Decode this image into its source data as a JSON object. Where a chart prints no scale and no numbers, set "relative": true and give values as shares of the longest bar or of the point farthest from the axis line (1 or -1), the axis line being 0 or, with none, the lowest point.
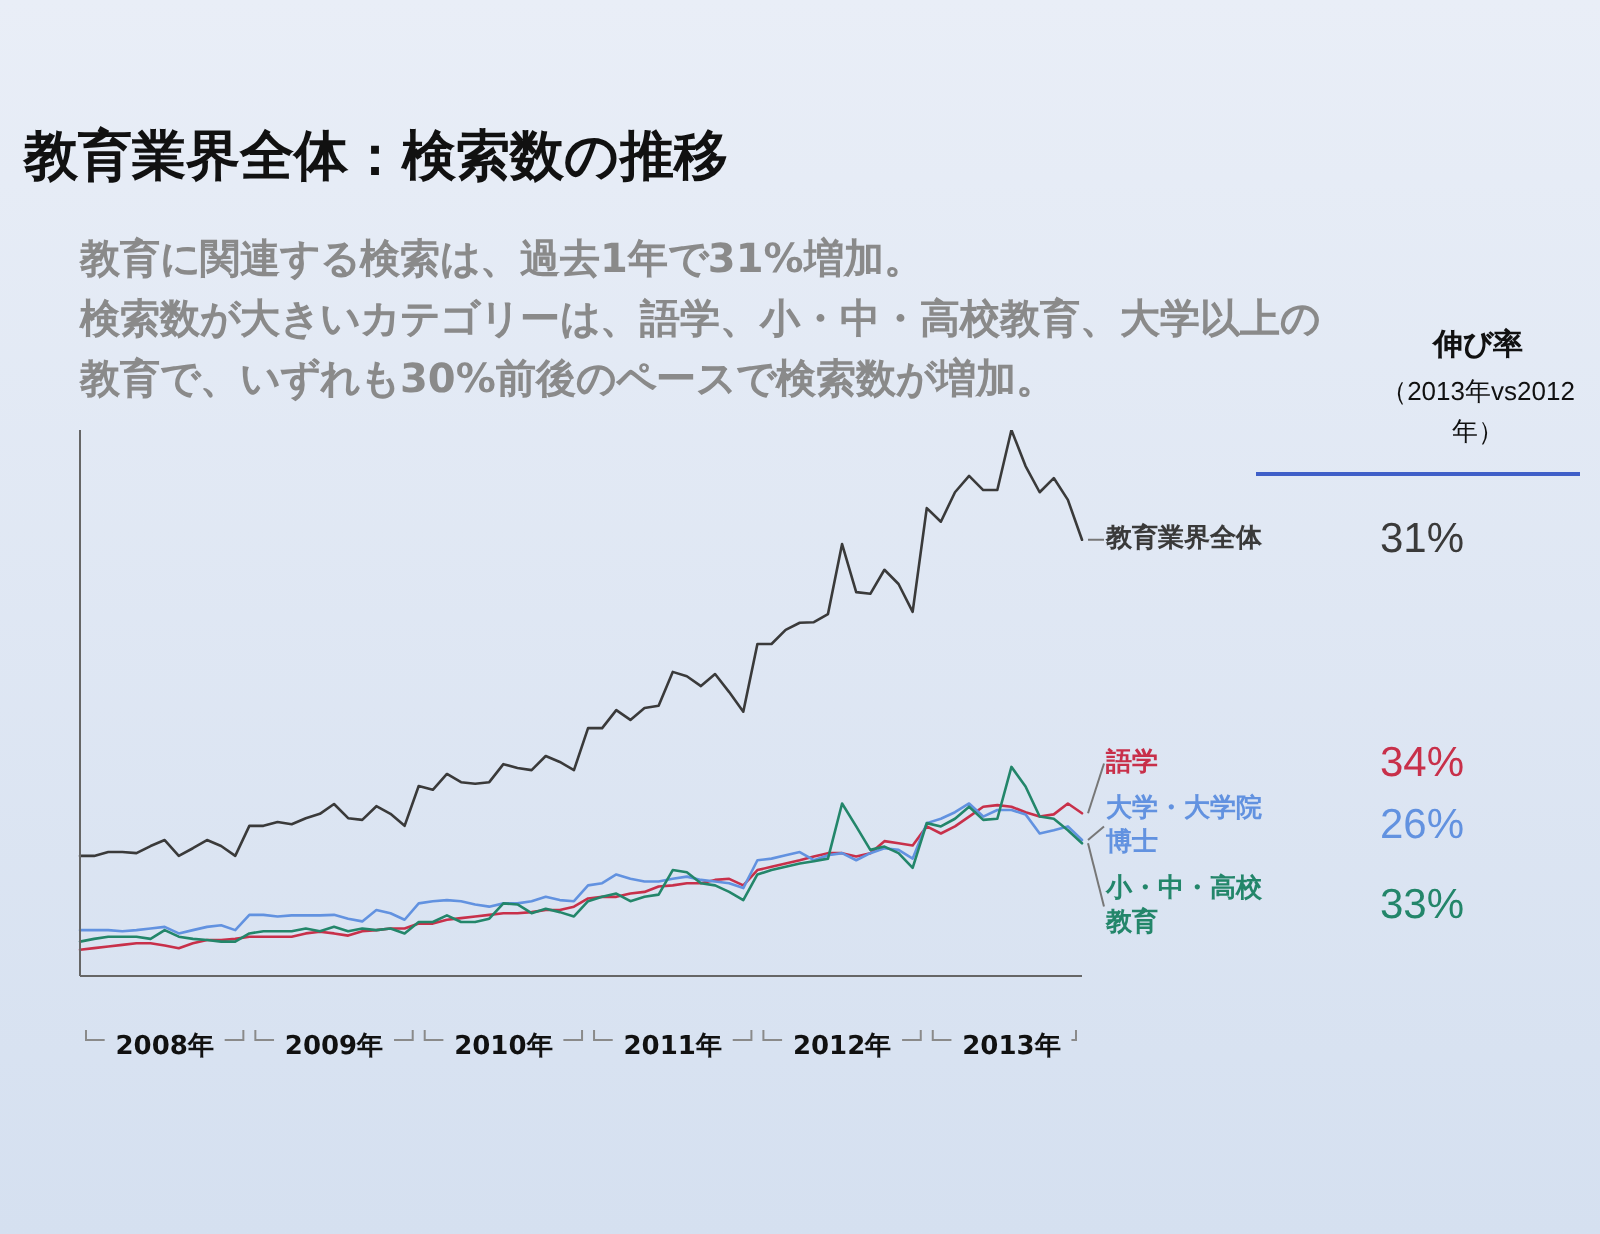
{
  "chart_data": {
    "type": "line",
    "relative": true,
    "title": "教育業界全体：検索数の推移",
    "subtitle": "教育に関連する検索は、過去1年で31%増加。検索数が大きいカテゴリーは、語学、小・中・高校教育、大学以上の教育で、いずれも30%前後のペースで検索数が増加。",
    "categories": [
      null,
      null,
      null,
      null,
      null,
      null,
      "2008年",
      null,
      null,
      null,
      null,
      null,
      null,
      null,
      null,
      null,
      null,
      null,
      "2009年",
      null,
      null,
      null,
      null,
      null,
      null,
      null,
      null,
      null,
      null,
      null,
      "2010年",
      null,
      null,
      null,
      null,
      null,
      null,
      null,
      null,
      null,
      null,
      null,
      "2011年",
      null,
      null,
      null,
      null,
      null,
      null,
      null,
      null,
      null,
      null,
      null,
      "2012年",
      null,
      null,
      null,
      null,
      null,
      null,
      null,
      null,
      null,
      null,
      null,
      "2013年",
      null,
      null,
      null,
      null,
      null
    ],
    "series": [
      {
        "name": "教育業界全体",
        "color": "#3a3a3a",
        "values": [
          0.22,
          0.22,
          0.227,
          0.227,
          0.225,
          0.238,
          0.249,
          0.22,
          0.234,
          0.249,
          0.238,
          0.22,
          0.275,
          0.275,
          0.282,
          0.278,
          0.289,
          0.297,
          0.315,
          0.289,
          0.286,
          0.311,
          0.297,
          0.275,
          0.348,
          0.341,
          0.37,
          0.355,
          0.352,
          0.355,
          0.388,
          0.381,
          0.377,
          0.403,
          0.392,
          0.377,
          0.454,
          0.454,
          0.487,
          0.469,
          0.491,
          0.495,
          0.557,
          0.549,
          0.531,
          0.553,
          0.52,
          0.484,
          0.608,
          0.608,
          0.634,
          0.647,
          0.648,
          0.663,
          0.791,
          0.703,
          0.7,
          0.744,
          0.718,
          0.667,
          0.857,
          0.832,
          0.886,
          0.916,
          0.89,
          0.89,
          1,
          0.934,
          0.886,
          0.912,
          0.872,
          0.799
        ]
      },
      {
        "name": "語学",
        "color": "#c8304a",
        "values": [
          0.048,
          0.051,
          0.054,
          0.057,
          0.06,
          0.06,
          0.056,
          0.051,
          0.06,
          0.066,
          0.066,
          0.068,
          0.072,
          0.072,
          0.072,
          0.072,
          0.078,
          0.081,
          0.078,
          0.074,
          0.082,
          0.084,
          0.087,
          0.087,
          0.096,
          0.096,
          0.103,
          0.106,
          0.109,
          0.112,
          0.115,
          0.115,
          0.117,
          0.121,
          0.121,
          0.127,
          0.142,
          0.145,
          0.145,
          0.151,
          0.154,
          0.164,
          0.166,
          0.17,
          0.17,
          0.176,
          0.178,
          0.166,
          0.194,
          0.2,
          0.206,
          0.212,
          0.219,
          0.225,
          0.225,
          0.219,
          0.225,
          0.247,
          0.243,
          0.239,
          0.274,
          0.261,
          0.274,
          0.292,
          0.31,
          0.313,
          0.31,
          0.3,
          0.292,
          0.296,
          0.316,
          0.298
        ]
      },
      {
        "name": "大学・大学院博士",
        "color": "#6292e0",
        "values": [
          0.084,
          0.084,
          0.084,
          0.082,
          0.084,
          0.087,
          0.09,
          0.078,
          0.084,
          0.09,
          0.093,
          0.084,
          0.112,
          0.112,
          0.109,
          0.111,
          0.111,
          0.111,
          0.112,
          0.105,
          0.1,
          0.121,
          0.115,
          0.103,
          0.133,
          0.137,
          0.139,
          0.137,
          0.131,
          0.127,
          0.133,
          0.133,
          0.137,
          0.145,
          0.139,
          0.137,
          0.166,
          0.17,
          0.186,
          0.178,
          0.173,
          0.173,
          0.178,
          0.182,
          0.176,
          0.173,
          0.17,
          0.161,
          0.212,
          0.215,
          0.221,
          0.227,
          0.212,
          0.221,
          0.225,
          0.212,
          0.225,
          0.234,
          0.231,
          0.215,
          0.28,
          0.288,
          0.3,
          0.316,
          0.292,
          0.304,
          0.304,
          0.296,
          0.261,
          0.267,
          0.274,
          0.249
        ]
      },
      {
        "name": "小・中・高校教育",
        "color": "#23866a",
        "values": [
          0.063,
          0.068,
          0.072,
          0.072,
          0.072,
          0.068,
          0.084,
          0.072,
          0.068,
          0.066,
          0.063,
          0.063,
          0.078,
          0.082,
          0.082,
          0.082,
          0.087,
          0.082,
          0.09,
          0.082,
          0.087,
          0.084,
          0.087,
          0.078,
          0.099,
          0.099,
          0.111,
          0.099,
          0.099,
          0.105,
          0.133,
          0.131,
          0.115,
          0.123,
          0.117,
          0.109,
          0.137,
          0.145,
          0.151,
          0.137,
          0.145,
          0.149,
          0.194,
          0.19,
          0.17,
          0.166,
          0.154,
          0.139,
          0.186,
          0.194,
          0.2,
          0.206,
          0.21,
          0.215,
          0.316,
          0.274,
          0.231,
          0.237,
          0.225,
          0.198,
          0.28,
          0.274,
          0.288,
          0.31,
          0.286,
          0.288,
          0.383,
          0.347,
          0.292,
          0.288,
          0.267,
          0.243
        ]
      }
    ],
    "annotations": [
      "伸び率",
      "（2013年vs2012年）",
      "31%",
      "34%",
      "26%",
      "33%"
    ]
  }
}
